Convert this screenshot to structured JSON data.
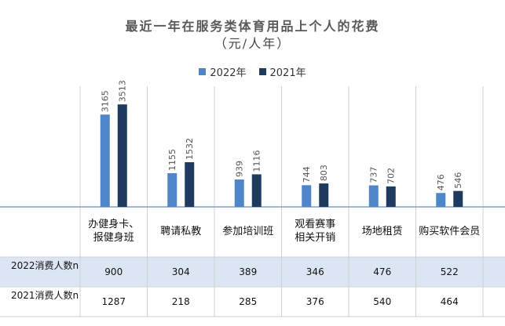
{
  "chart_data": {
    "type": "bar",
    "title": "最近一年在服务类体育用品上个人的花费",
    "subtitle": "（元/人年）",
    "categories": [
      "办健身卡、\n报健身班",
      "聘请私教",
      "参加培训班",
      "观看赛事\n相关开销",
      "场地租赁",
      "购买软件会员"
    ],
    "series": [
      {
        "name": "2022年",
        "color": "#4f86c9",
        "values": [
          3165,
          1155,
          939,
          744,
          737,
          476
        ]
      },
      {
        "name": "2021年",
        "color": "#1f3a5f",
        "values": [
          3513,
          1532,
          1116,
          803,
          702,
          546
        ]
      }
    ],
    "ylim": [
      0,
      3600
    ],
    "legend_position": "top-center",
    "grid": false
  },
  "table": {
    "rows": [
      {
        "label": "2022消费人数n",
        "values": [
          "900",
          "304",
          "389",
          "346",
          "476",
          "522"
        ]
      },
      {
        "label": "2021消费人数n",
        "values": [
          "1287",
          "218",
          "285",
          "376",
          "540",
          "464"
        ]
      }
    ]
  }
}
